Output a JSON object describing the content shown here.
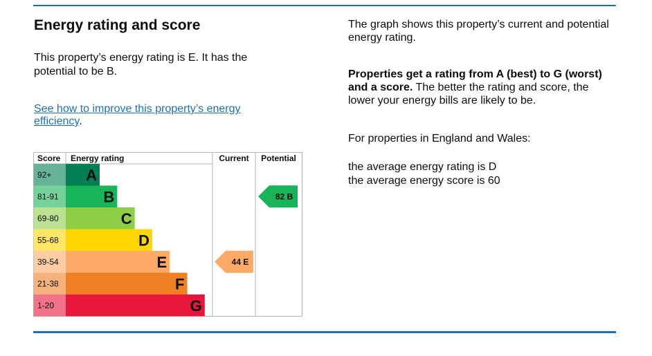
{
  "heading": "Energy rating and score",
  "intro": "This property’s energy rating is E. It has the potential to be B.",
  "improve_link": "See how to improve this property’s energy efficiency",
  "improve_link_suffix": ".",
  "right": {
    "graph_desc": "The graph shows this property’s current and potential energy rating.",
    "ratings_bold": "Properties get a rating from A (best) to G (worst) and a score.",
    "ratings_rest": " The better the rating and score, the lower your energy bills are likely to be.",
    "region": "For properties in England and Wales:",
    "average_rating": "the average energy rating is D",
    "average_score": "the average energy score is 60"
  },
  "chart_data": {
    "type": "table",
    "headers": {
      "score": "Score",
      "rating": "Energy rating",
      "current": "Current",
      "potential": "Potential"
    },
    "bands": [
      {
        "range": "92+",
        "letter": "A",
        "color": "#008054",
        "score_bg": "#66b398"
      },
      {
        "range": "81-91",
        "letter": "B",
        "color": "#19b459",
        "score_bg": "#75d29b"
      },
      {
        "range": "69-80",
        "letter": "C",
        "color": "#8dce46",
        "score_bg": "#bbe290"
      },
      {
        "range": "55-68",
        "letter": "D",
        "color": "#ffd500",
        "score_bg": "#ffe666"
      },
      {
        "range": "39-54",
        "letter": "E",
        "color": "#fcaa65",
        "score_bg": "#fdcca3"
      },
      {
        "range": "21-38",
        "letter": "F",
        "color": "#ef8023",
        "score_bg": "#f5b37b"
      },
      {
        "range": "1-20",
        "letter": "G",
        "color": "#e9153b",
        "score_bg": "#f27389"
      }
    ],
    "current": {
      "score": 44,
      "letter": "E",
      "label": "44  E",
      "color": "#fcaa65"
    },
    "potential": {
      "score": 82,
      "letter": "B",
      "label": "82  B",
      "color": "#19b459"
    }
  }
}
